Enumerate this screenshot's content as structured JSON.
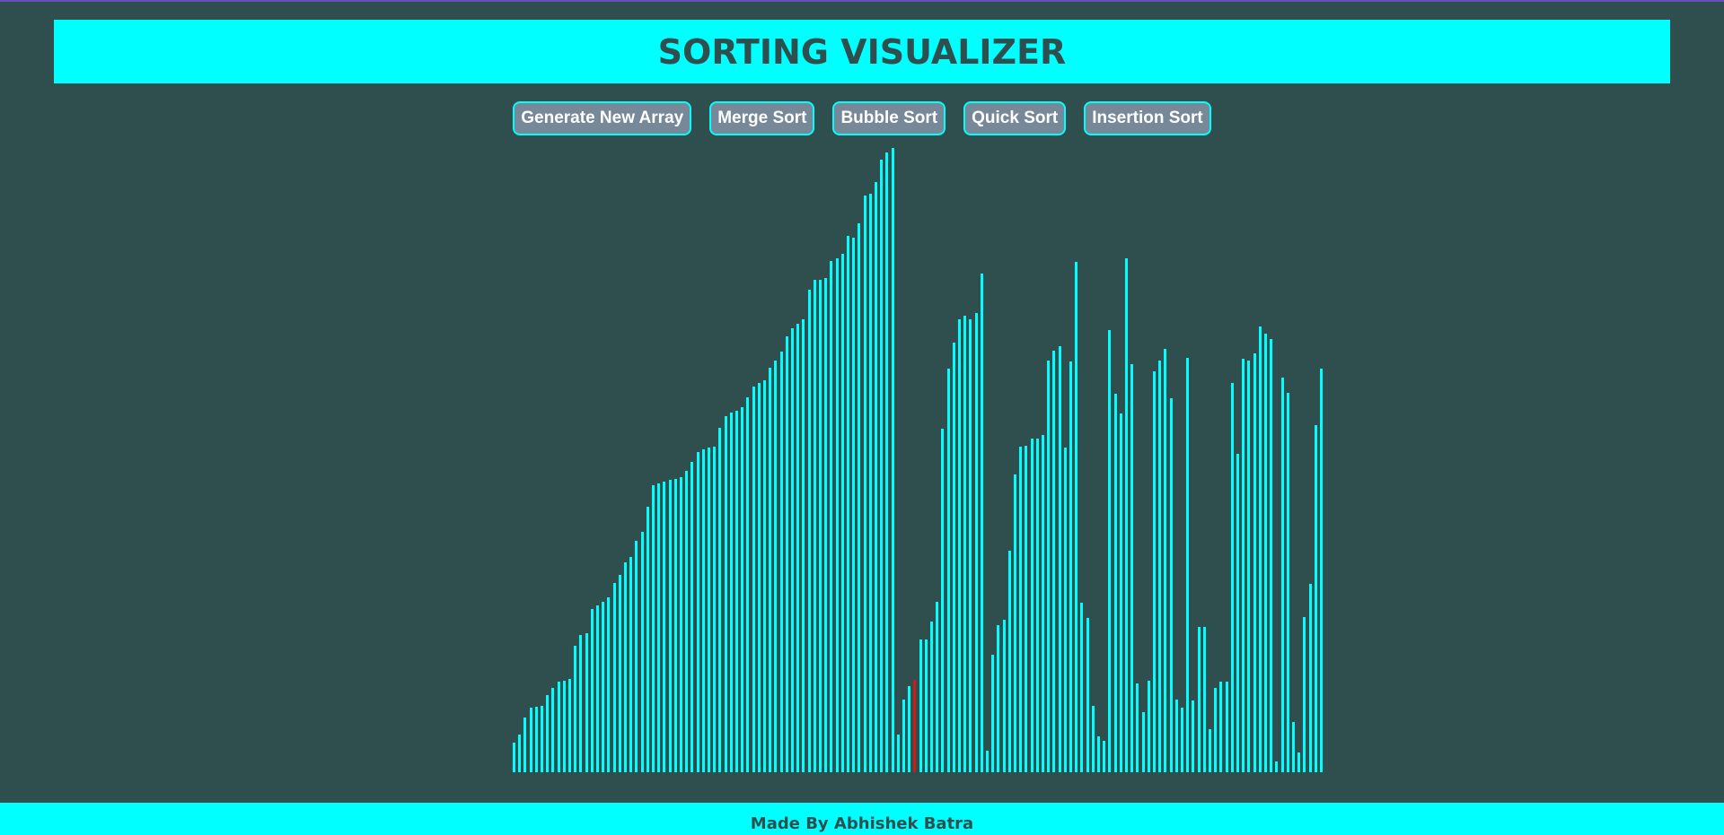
{
  "app": {
    "title": "SORTING VISUALIZER",
    "footer_text": "Made By Abhishek Batra"
  },
  "buttons": [
    {
      "name": "generate-new-array-button",
      "label": "Generate New Array"
    },
    {
      "name": "merge-sort-button",
      "label": "Merge Sort"
    },
    {
      "name": "bubble-sort-button",
      "label": "Bubble Sort"
    },
    {
      "name": "quick-sort-button",
      "label": "Quick Sort"
    },
    {
      "name": "insertion-sort-button",
      "label": "Insertion Sort"
    }
  ],
  "colors": {
    "background": "#2f4f4f",
    "accent": "#00ffff",
    "button_bg": "#778899",
    "bar_default": "#00ffff",
    "bar_active": "#cc1a1a"
  },
  "array": {
    "values": [
      33,
      42,
      61,
      72,
      73,
      74,
      86,
      94,
      101,
      102,
      104,
      141,
      153,
      155,
      182,
      186,
      190,
      195,
      211,
      220,
      234,
      240,
      258,
      268,
      296,
      320,
      322,
      324,
      326,
      327,
      329,
      336,
      346,
      357,
      360,
      362,
      363,
      384,
      397,
      401,
      403,
      407,
      418,
      430,
      434,
      437,
      451,
      459,
      469,
      486,
      495,
      500,
      505,
      538,
      549,
      549,
      551,
      570,
      573,
      578,
      598,
      596,
      612,
      643,
      645,
      658,
      683,
      691,
      696,
      42,
      81,
      96,
      103,
      148,
      148,
      168,
      190,
      383,
      450,
      479,
      505,
      509,
      505,
      512,
      556,
      24,
      131,
      164,
      170,
      247,
      332,
      363,
      364,
      372,
      372,
      376,
      459,
      470,
      475,
      362,
      458,
      569,
      189,
      172,
      74,
      40,
      35,
      493,
      422,
      400,
      573,
      455,
      99,
      67,
      102,
      447,
      459,
      472,
      417,
      81,
      72,
      462,
      80,
      162,
      162,
      48,
      94,
      101,
      101,
      434,
      355,
      461,
      459,
      467,
      497,
      489,
      483,
      12,
      440,
      423,
      56,
      22,
      173,
      210,
      387,
      450
    ],
    "active_indices": [
      72
    ]
  }
}
